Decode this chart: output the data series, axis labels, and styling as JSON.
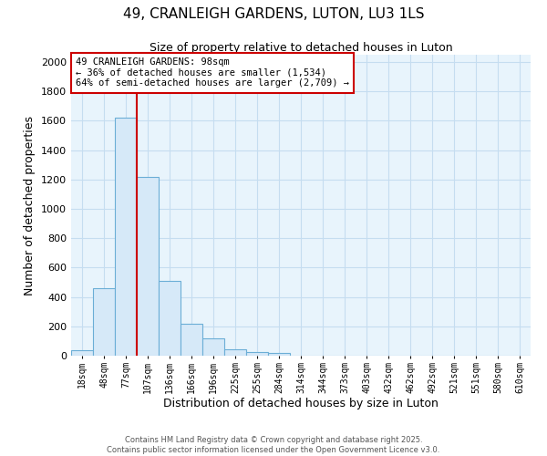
{
  "title_line1": "49, CRANLEIGH GARDENS, LUTON, LU3 1LS",
  "title_line2": "Size of property relative to detached houses in Luton",
  "xlabel": "Distribution of detached houses by size in Luton",
  "ylabel": "Number of detached properties",
  "property_label": "49 CRANLEIGH GARDENS: 98sqm",
  "annotation_line2": "← 36% of detached houses are smaller (1,534)",
  "annotation_line3": "64% of semi-detached houses are larger (2,709) →",
  "categories": [
    "18sqm",
    "48sqm",
    "77sqm",
    "107sqm",
    "136sqm",
    "166sqm",
    "196sqm",
    "225sqm",
    "255sqm",
    "284sqm",
    "314sqm",
    "344sqm",
    "373sqm",
    "403sqm",
    "432sqm",
    "462sqm",
    "492sqm",
    "521sqm",
    "551sqm",
    "580sqm",
    "610sqm"
  ],
  "bar_heights": [
    40,
    460,
    1620,
    1220,
    510,
    220,
    115,
    45,
    25,
    20,
    0,
    0,
    0,
    0,
    0,
    0,
    0,
    0,
    0,
    0,
    0
  ],
  "bar_color": "#d6e9f8",
  "bar_edge_color": "#6baed6",
  "vline_color": "#cc0000",
  "vline_x_idx": 2,
  "ylim": [
    0,
    2050
  ],
  "yticks": [
    0,
    200,
    400,
    600,
    800,
    1000,
    1200,
    1400,
    1600,
    1800,
    2000
  ],
  "grid_color": "#c5ddf0",
  "background_color": "#e8f4fc",
  "annotation_box_color": "#cc0000",
  "footer_line1": "Contains HM Land Registry data © Crown copyright and database right 2025.",
  "footer_line2": "Contains public sector information licensed under the Open Government Licence v3.0."
}
